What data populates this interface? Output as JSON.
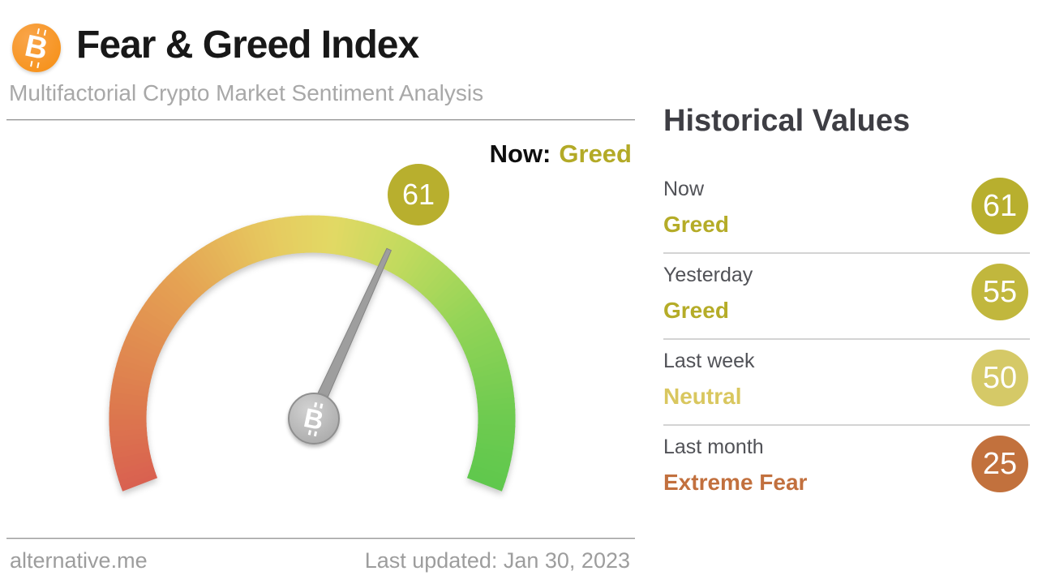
{
  "chart_data": {
    "type": "gauge",
    "title": "Fear & Greed Index",
    "subtitle": "Multifactorial Crypto Market Sentiment Analysis",
    "current_value": 61,
    "current_sentiment": "Greed",
    "value_range": [
      0,
      100
    ],
    "gauge_sweep_degrees": 222,
    "historical": {
      "categories": [
        "Now",
        "Yesterday",
        "Last week",
        "Last month"
      ],
      "values": [
        61,
        55,
        50,
        25
      ],
      "sentiments": [
        "Greed",
        "Greed",
        "Neutral",
        "Extreme Fear"
      ]
    },
    "last_updated": "Jan 30, 2023",
    "source": "alternative.me"
  },
  "header": {
    "title": "Fear & Greed Index",
    "subtitle": "Multifactorial Crypto Market Sentiment Analysis",
    "bitcoin_symbol": "B",
    "logo_color": "#f7931a"
  },
  "gauge": {
    "value": 61,
    "value_label": "61",
    "now_prefix": "Now:",
    "now_sentiment": "Greed",
    "sentiment_color": "#b3aa27",
    "badge_color": "#b8af2e",
    "needle_color": "#9e9e9e",
    "needle_edge_color": "#848484",
    "gradient_stops": [
      {
        "t": 0.0,
        "color": "#d96050"
      },
      {
        "t": 0.12,
        "color": "#dd7b4e"
      },
      {
        "t": 0.3,
        "color": "#e5a253"
      },
      {
        "t": 0.45,
        "color": "#e6cb60"
      },
      {
        "t": 0.53,
        "color": "#e2d964"
      },
      {
        "t": 0.63,
        "color": "#c2da5e"
      },
      {
        "t": 0.76,
        "color": "#93d457"
      },
      {
        "t": 0.9,
        "color": "#6fcb50"
      },
      {
        "t": 1.0,
        "color": "#5fc84d"
      }
    ]
  },
  "historical": {
    "heading": "Historical Values",
    "rows": [
      {
        "label": "Now",
        "sentiment": "Greed",
        "sentiment_color": "#b5ac28",
        "value": "61",
        "badge_color": "#b8af2e"
      },
      {
        "label": "Yesterday",
        "sentiment": "Greed",
        "sentiment_color": "#b5ac28",
        "value": "55",
        "badge_color": "#c1b73d"
      },
      {
        "label": "Last week",
        "sentiment": "Neutral",
        "sentiment_color": "#d9c75f",
        "value": "50",
        "badge_color": "#d5c967"
      },
      {
        "label": "Last month",
        "sentiment": "Extreme Fear",
        "sentiment_color": "#c2703e",
        "value": "25",
        "badge_color": "#c2713d"
      }
    ]
  },
  "footer": {
    "site": "alternative.me",
    "last_updated": "Last updated: Jan 30, 2023"
  }
}
